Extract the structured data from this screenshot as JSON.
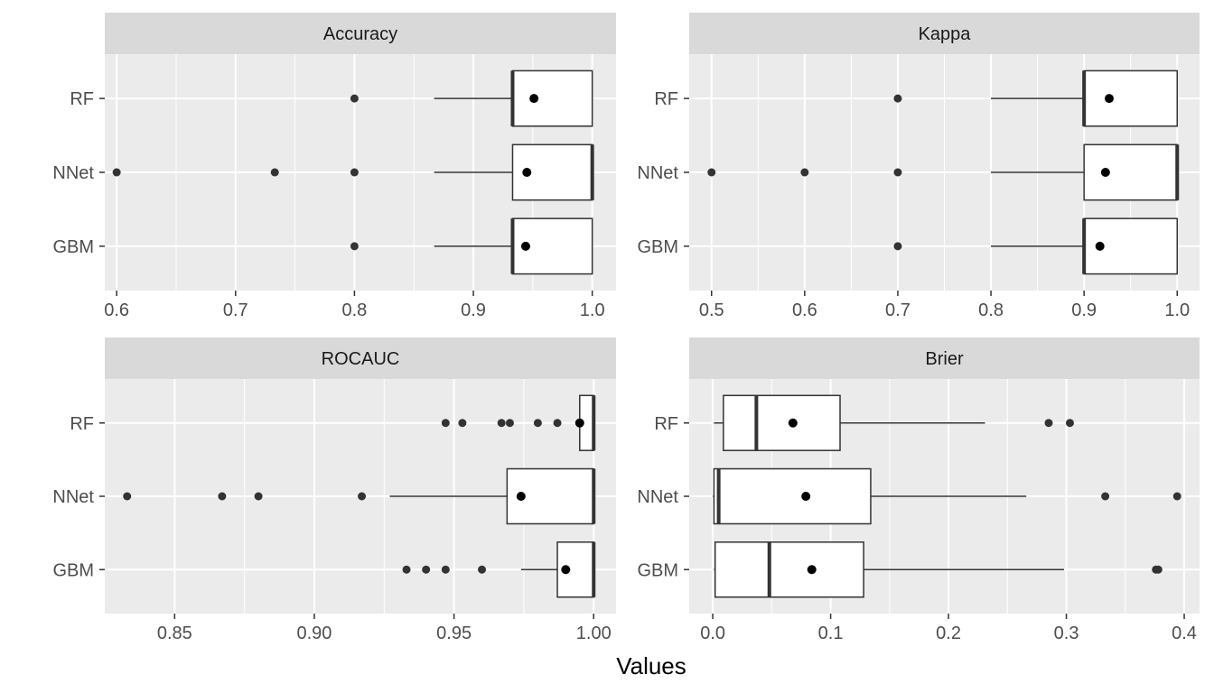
{
  "chart_data": {
    "type": "boxplot",
    "xlabel": "Values",
    "categories": [
      "GBM",
      "NNet",
      "RF"
    ],
    "grid": true,
    "panels": [
      {
        "title": "Accuracy",
        "xlim": [
          0.59,
          1.02
        ],
        "ticks": [
          0.6,
          0.7,
          0.8,
          0.9,
          1.0
        ],
        "tick_labels": [
          "0.6",
          "0.7",
          "0.8",
          "0.9",
          "1.0"
        ],
        "boxes": [
          {
            "model": "RF",
            "whisker_low": 0.867,
            "q1": 0.933,
            "median": 0.933,
            "q3": 1.0,
            "whisker_high": 1.0,
            "mean": 0.951,
            "outliers": [
              0.8
            ]
          },
          {
            "model": "NNet",
            "whisker_low": 0.867,
            "q1": 0.933,
            "median": 1.0,
            "q3": 1.0,
            "whisker_high": 1.0,
            "mean": 0.945,
            "outliers": [
              0.6,
              0.733,
              0.8
            ]
          },
          {
            "model": "GBM",
            "whisker_low": 0.867,
            "q1": 0.933,
            "median": 0.933,
            "q3": 1.0,
            "whisker_high": 1.0,
            "mean": 0.944,
            "outliers": [
              0.8
            ]
          }
        ]
      },
      {
        "title": "Kappa",
        "xlim": [
          0.476,
          1.024
        ],
        "ticks": [
          0.5,
          0.6,
          0.7,
          0.8,
          0.9,
          1.0
        ],
        "tick_labels": [
          "0.5",
          "0.6",
          "0.7",
          "0.8",
          "0.9",
          "1.0"
        ],
        "boxes": [
          {
            "model": "RF",
            "whisker_low": 0.8,
            "q1": 0.9,
            "median": 0.9,
            "q3": 1.0,
            "whisker_high": 1.0,
            "mean": 0.927,
            "outliers": [
              0.7
            ]
          },
          {
            "model": "NNet",
            "whisker_low": 0.8,
            "q1": 0.9,
            "median": 1.0,
            "q3": 1.0,
            "whisker_high": 1.0,
            "mean": 0.923,
            "outliers": [
              0.5,
              0.6,
              0.7
            ]
          },
          {
            "model": "GBM",
            "whisker_low": 0.8,
            "q1": 0.9,
            "median": 0.9,
            "q3": 1.0,
            "whisker_high": 1.0,
            "mean": 0.917,
            "outliers": [
              0.7
            ]
          }
        ]
      },
      {
        "title": "ROCAUC",
        "xlim": [
          0.825,
          1.008
        ],
        "ticks": [
          0.85,
          0.9,
          0.95,
          1.0
        ],
        "tick_labels": [
          "0.85",
          "0.90",
          "0.95",
          "1.00"
        ],
        "boxes": [
          {
            "model": "RF",
            "whisker_low": 0.995,
            "q1": 0.995,
            "median": 1.0,
            "q3": 1.0,
            "whisker_high": 1.0,
            "mean": 0.995,
            "outliers": [
              0.947,
              0.953,
              0.967,
              0.97,
              0.98,
              0.987,
              0.995
            ]
          },
          {
            "model": "NNet",
            "whisker_low": 0.927,
            "q1": 0.969,
            "median": 1.0,
            "q3": 1.0,
            "whisker_high": 1.0,
            "mean": 0.974,
            "outliers": [
              0.833,
              0.867,
              0.88,
              0.917
            ]
          },
          {
            "model": "GBM",
            "whisker_low": 0.974,
            "q1": 0.987,
            "median": 1.0,
            "q3": 1.0,
            "whisker_high": 1.0,
            "mean": 0.99,
            "outliers": [
              0.933,
              0.94,
              0.947,
              0.96
            ]
          }
        ]
      },
      {
        "title": "Brier",
        "xlim": [
          -0.02,
          0.413
        ],
        "ticks": [
          0.0,
          0.1,
          0.2,
          0.3,
          0.4
        ],
        "tick_labels": [
          "0.0",
          "0.1",
          "0.2",
          "0.3",
          "0.4"
        ],
        "boxes": [
          {
            "model": "RF",
            "whisker_low": 0.001,
            "q1": 0.009,
            "median": 0.037,
            "q3": 0.108,
            "whisker_high": 0.231,
            "mean": 0.068,
            "outliers": [
              0.285,
              0.303
            ]
          },
          {
            "model": "NNet",
            "whisker_low": 0.0,
            "q1": 0.001,
            "median": 0.005,
            "q3": 0.134,
            "whisker_high": 0.266,
            "mean": 0.079,
            "outliers": [
              0.333,
              0.394
            ]
          },
          {
            "model": "GBM",
            "whisker_low": 0.001,
            "q1": 0.002,
            "median": 0.048,
            "q3": 0.128,
            "whisker_high": 0.298,
            "mean": 0.084,
            "outliers": [
              0.376,
              0.378
            ]
          }
        ]
      }
    ]
  },
  "colors": {
    "panel_bg": "#ebebeb",
    "strip_bg": "#d9d9d9",
    "grid": "#ffffff",
    "box_fill": "#ffffff",
    "line": "#333333",
    "mean": "#000000"
  }
}
